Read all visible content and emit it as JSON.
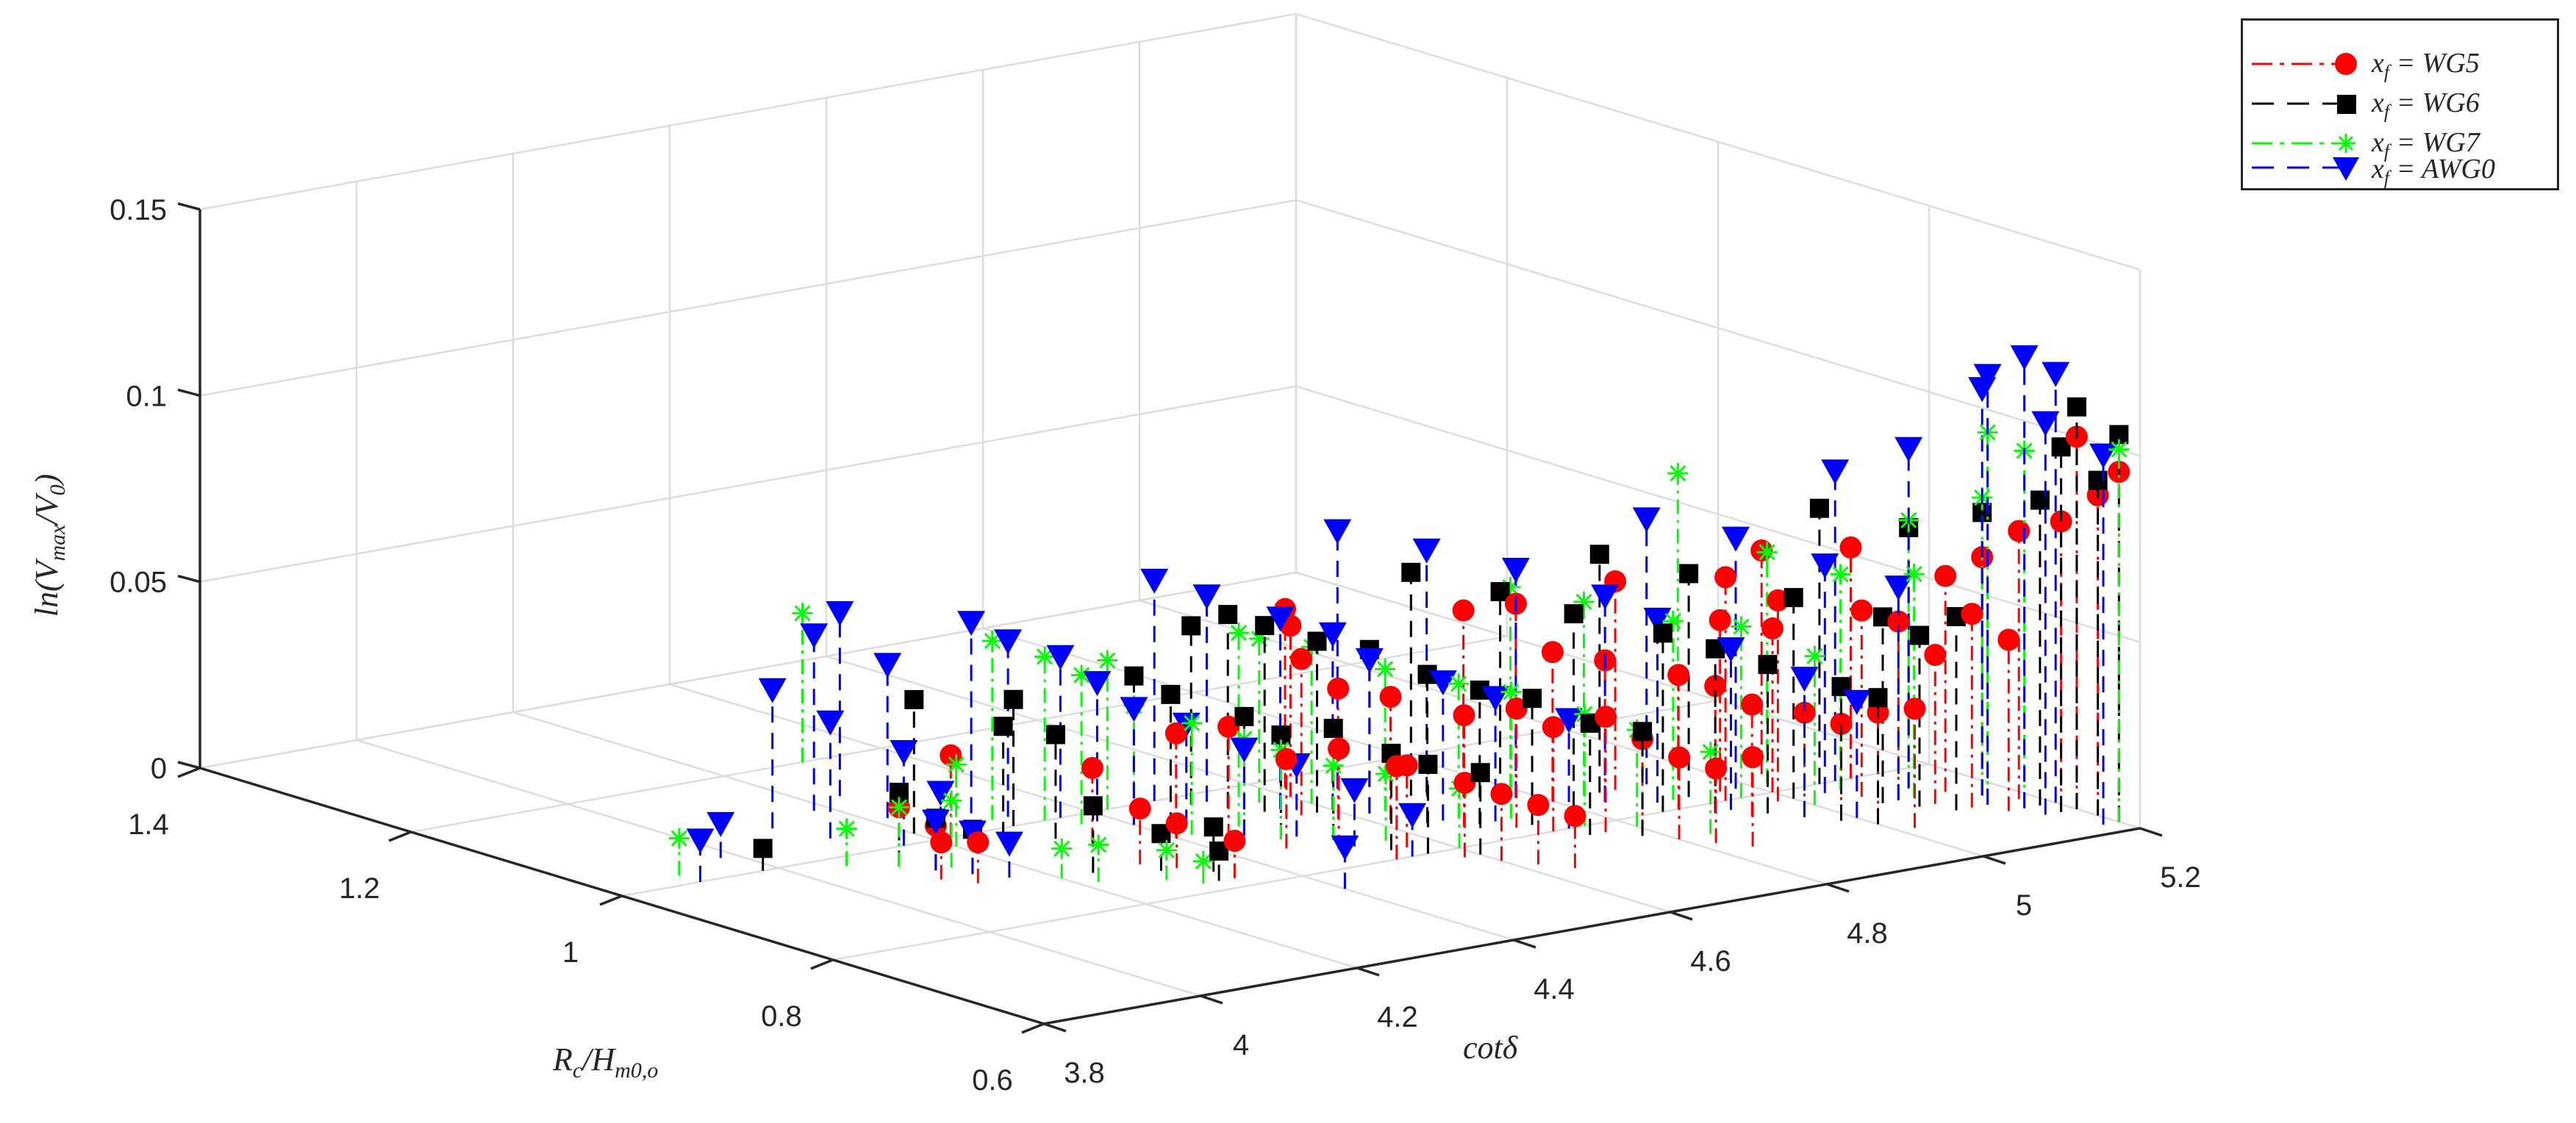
{
  "chart_data": {
    "type": "scatter3d-stem",
    "title": "",
    "xlabel": "R_c/H_{m0,o}",
    "ylabel": "cotδ",
    "zlabel": "ln(V_max/V_0)",
    "x_axis": {
      "label_display": "Rc/Hm0,o",
      "range": [
        0.6,
        1.4
      ],
      "ticks": [
        0.6,
        0.8,
        1,
        1.2,
        1.4
      ],
      "tick_labels": [
        "0.6",
        "0.8",
        "1",
        "1.2",
        "1.4"
      ]
    },
    "y_axis": {
      "label_display": "cotδ",
      "range": [
        3.8,
        5.2
      ],
      "ticks": [
        3.8,
        4,
        4.2,
        4.4,
        4.6,
        4.8,
        5,
        5.2
      ],
      "tick_labels": [
        "3.8",
        "4",
        "4.2",
        "4.4",
        "4.6",
        "4.8",
        "5",
        "5.2"
      ]
    },
    "z_axis": {
      "label_display": "ln(Vmax/V0)",
      "range": [
        0,
        0.15
      ],
      "ticks": [
        0,
        0.05,
        0.1,
        0.15
      ],
      "tick_labels": [
        "0",
        "0.05",
        "0.1",
        "0.15"
      ]
    },
    "grid": true,
    "legend_position": "top-right outside",
    "series": [
      {
        "name": "x_f = WG5",
        "legend_label": "WG5",
        "color": "#ff0000",
        "marker": "circle",
        "line_style": "dash-dot",
        "points": [
          [
            0.96,
            4.1,
            0.016
          ],
          [
            0.94,
            4.12,
            0.012
          ],
          [
            0.92,
            4.1,
            0.01
          ],
          [
            0.9,
            4.12,
            0.011
          ],
          [
            0.88,
            4.3,
            0.015
          ],
          [
            0.86,
            4.32,
            0.012
          ],
          [
            0.82,
            4.34,
            0.01
          ],
          [
            0.92,
            4.4,
            0.028
          ],
          [
            0.9,
            4.44,
            0.03
          ],
          [
            0.86,
            4.46,
            0.024
          ],
          [
            0.84,
            4.5,
            0.027
          ],
          [
            0.8,
            4.52,
            0.025
          ],
          [
            0.82,
            4.56,
            0.022
          ],
          [
            0.78,
            4.58,
            0.02
          ],
          [
            0.76,
            4.6,
            0.018
          ],
          [
            0.74,
            4.62,
            0.016
          ],
          [
            0.72,
            4.64,
            0.014
          ],
          [
            0.9,
            4.58,
            0.035
          ],
          [
            0.88,
            4.62,
            0.033
          ],
          [
            0.84,
            4.66,
            0.03
          ],
          [
            0.82,
            4.7,
            0.032
          ],
          [
            0.8,
            4.72,
            0.028
          ],
          [
            0.78,
            4.76,
            0.031
          ],
          [
            0.76,
            4.78,
            0.026
          ],
          [
            0.74,
            4.8,
            0.022
          ],
          [
            0.72,
            4.82,
            0.02
          ],
          [
            0.7,
            4.84,
            0.024
          ],
          [
            0.86,
            4.8,
            0.04
          ],
          [
            0.84,
            4.84,
            0.038
          ],
          [
            0.8,
            4.88,
            0.036
          ],
          [
            0.78,
            4.9,
            0.034
          ],
          [
            0.76,
            4.92,
            0.03
          ],
          [
            0.74,
            4.96,
            0.028
          ],
          [
            0.72,
            4.98,
            0.026
          ],
          [
            0.7,
            5.0,
            0.03
          ],
          [
            0.68,
            5.02,
            0.032
          ],
          [
            0.82,
            4.96,
            0.046
          ],
          [
            0.8,
            5.0,
            0.044
          ],
          [
            0.76,
            5.06,
            0.05
          ],
          [
            0.74,
            5.08,
            0.048
          ],
          [
            0.72,
            5.1,
            0.04
          ],
          [
            0.7,
            5.12,
            0.052
          ],
          [
            0.68,
            5.14,
            0.046
          ],
          [
            0.84,
            5.04,
            0.06
          ],
          [
            0.8,
            5.1,
            0.062
          ],
          [
            0.74,
            5.14,
            0.058
          ],
          [
            0.72,
            5.16,
            0.064
          ],
          [
            0.7,
            5.18,
            0.072
          ],
          [
            0.66,
            5.18,
            0.078
          ],
          [
            0.64,
            5.2,
            0.086
          ],
          [
            0.62,
            5.2,
            0.094
          ],
          [
            0.66,
            5.2,
            0.1
          ],
          [
            0.92,
            4.56,
            0.042
          ],
          [
            0.96,
            4.6,
            0.046
          ],
          [
            0.98,
            4.62,
            0.048
          ],
          [
            0.9,
            4.74,
            0.05
          ],
          [
            0.88,
            4.78,
            0.052
          ],
          [
            0.86,
            4.88,
            0.056
          ],
          [
            0.8,
            4.94,
            0.06
          ],
          [
            0.78,
            4.98,
            0.054
          ],
          [
            0.94,
            4.32,
            0.02
          ],
          [
            1.0,
            4.22,
            0.022
          ]
        ]
      },
      {
        "name": "x_f = WG6",
        "legend_label": "WG6",
        "color": "#000000",
        "marker": "square",
        "line_style": "dashed",
        "points": [
          [
            1.0,
            3.98,
            0.006
          ],
          [
            0.96,
            4.1,
            0.02
          ],
          [
            0.94,
            4.12,
            0.014
          ],
          [
            0.92,
            4.14,
            0.012
          ],
          [
            0.88,
            4.24,
            0.018
          ],
          [
            0.86,
            4.3,
            0.01
          ],
          [
            0.84,
            4.34,
            0.012
          ],
          [
            0.82,
            4.32,
            0.008
          ],
          [
            0.96,
            4.4,
            0.04
          ],
          [
            0.94,
            4.42,
            0.036
          ],
          [
            0.9,
            4.46,
            0.032
          ],
          [
            0.88,
            4.48,
            0.028
          ],
          [
            0.86,
            4.52,
            0.03
          ],
          [
            0.82,
            4.54,
            0.026
          ],
          [
            0.8,
            4.56,
            0.024
          ],
          [
            0.78,
            4.6,
            0.022
          ],
          [
            0.94,
            4.54,
            0.05
          ],
          [
            0.92,
            4.58,
            0.046
          ],
          [
            0.9,
            4.62,
            0.044
          ],
          [
            0.86,
            4.64,
            0.04
          ],
          [
            0.84,
            4.68,
            0.036
          ],
          [
            0.82,
            4.72,
            0.034
          ],
          [
            0.78,
            4.74,
            0.03
          ],
          [
            0.76,
            4.78,
            0.028
          ],
          [
            0.92,
            4.7,
            0.06
          ],
          [
            0.88,
            4.76,
            0.056
          ],
          [
            0.84,
            4.8,
            0.052
          ],
          [
            0.8,
            4.86,
            0.048
          ],
          [
            0.78,
            4.9,
            0.044
          ],
          [
            0.76,
            4.94,
            0.04
          ],
          [
            0.72,
            4.98,
            0.036
          ],
          [
            0.7,
            5.0,
            0.034
          ],
          [
            0.86,
            4.86,
            0.064
          ],
          [
            0.82,
            4.92,
            0.06
          ],
          [
            0.78,
            5.0,
            0.054
          ],
          [
            0.74,
            5.06,
            0.05
          ],
          [
            0.72,
            5.08,
            0.046
          ],
          [
            0.7,
            5.1,
            0.052
          ],
          [
            0.8,
            5.06,
            0.074
          ],
          [
            0.76,
            5.12,
            0.07
          ],
          [
            0.72,
            5.16,
            0.076
          ],
          [
            0.68,
            5.18,
            0.082
          ],
          [
            0.66,
            5.18,
            0.098
          ],
          [
            0.64,
            5.2,
            0.09
          ],
          [
            0.62,
            5.2,
            0.104
          ],
          [
            0.66,
            5.2,
            0.108
          ],
          [
            0.98,
            4.26,
            0.03
          ],
          [
            1.0,
            4.3,
            0.034
          ],
          [
            0.96,
            4.3,
            0.028
          ],
          [
            1.02,
            4.2,
            0.036
          ],
          [
            0.98,
            4.5,
            0.048
          ],
          [
            0.96,
            4.52,
            0.052
          ]
        ]
      },
      {
        "name": "x_f = WG7",
        "legend_label": "WG7",
        "color": "#00ff00",
        "marker": "asterisk",
        "line_style": "dash-dot",
        "points": [
          [
            1.02,
            3.9,
            0.01
          ],
          [
            1.2,
            4.3,
            0.04
          ],
          [
            0.98,
            4.06,
            0.01
          ],
          [
            0.96,
            4.1,
            0.016
          ],
          [
            0.94,
            4.14,
            0.018
          ],
          [
            0.88,
            4.2,
            0.008
          ],
          [
            0.86,
            4.22,
            0.01
          ],
          [
            0.84,
            4.28,
            0.008
          ],
          [
            0.82,
            4.3,
            0.006
          ],
          [
            1.02,
            4.3,
            0.048
          ],
          [
            1.0,
            4.34,
            0.044
          ],
          [
            0.98,
            4.36,
            0.04
          ],
          [
            0.96,
            4.4,
            0.032
          ],
          [
            0.92,
            4.42,
            0.03
          ],
          [
            0.9,
            4.46,
            0.026
          ],
          [
            0.88,
            4.48,
            0.024
          ],
          [
            0.86,
            4.52,
            0.02
          ],
          [
            0.84,
            4.56,
            0.018
          ],
          [
            0.8,
            4.6,
            0.016
          ],
          [
            0.96,
            4.56,
            0.044
          ],
          [
            0.94,
            4.6,
            0.042
          ],
          [
            0.9,
            4.64,
            0.038
          ],
          [
            0.86,
            4.68,
            0.036
          ],
          [
            0.84,
            4.72,
            0.034
          ],
          [
            0.8,
            4.76,
            0.03
          ],
          [
            0.78,
            4.8,
            0.026
          ],
          [
            0.74,
            4.84,
            0.022
          ],
          [
            0.9,
            4.8,
            0.054
          ],
          [
            0.86,
            4.84,
            0.052
          ],
          [
            0.82,
            4.9,
            0.048
          ],
          [
            0.8,
            4.96,
            0.046
          ],
          [
            0.76,
            5.0,
            0.04
          ],
          [
            0.86,
            4.96,
            0.082
          ],
          [
            0.82,
            5.02,
            0.062
          ],
          [
            0.78,
            5.06,
            0.058
          ],
          [
            0.74,
            5.1,
            0.06
          ],
          [
            0.76,
            5.12,
            0.072
          ],
          [
            0.72,
            5.16,
            0.08
          ],
          [
            0.7,
            5.14,
            0.1
          ],
          [
            0.68,
            5.16,
            0.096
          ],
          [
            0.62,
            5.2,
            0.1
          ],
          [
            0.92,
            4.48,
            0.052
          ],
          [
            1.0,
            4.42,
            0.04
          ],
          [
            0.98,
            4.2,
            0.022
          ]
        ]
      },
      {
        "name": "x_f = AWG0",
        "legend_label": "AWG0",
        "color": "#0000ff",
        "marker": "triangle-down",
        "line_style": "dashed",
        "points": [
          [
            1.0,
            3.9,
            0.01
          ],
          [
            1.04,
            3.98,
            0.008
          ],
          [
            1.08,
            4.1,
            0.036
          ],
          [
            1.04,
            4.12,
            0.03
          ],
          [
            1.0,
            4.16,
            0.024
          ],
          [
            0.98,
            4.18,
            0.014
          ],
          [
            0.94,
            4.12,
            0.012
          ],
          [
            0.92,
            4.14,
            0.01
          ],
          [
            0.9,
            4.16,
            0.008
          ],
          [
            1.04,
            4.3,
            0.05
          ],
          [
            1.02,
            4.32,
            0.046
          ],
          [
            1.0,
            4.36,
            0.042
          ],
          [
            0.98,
            4.38,
            0.036
          ],
          [
            0.96,
            4.4,
            0.03
          ],
          [
            0.94,
            4.44,
            0.026
          ],
          [
            0.9,
            4.46,
            0.022
          ],
          [
            0.88,
            4.5,
            0.018
          ],
          [
            0.84,
            4.52,
            0.014
          ],
          [
            0.8,
            4.54,
            0.01
          ],
          [
            0.76,
            4.4,
            0.01
          ],
          [
            1.0,
            4.48,
            0.058
          ],
          [
            0.98,
            4.52,
            0.054
          ],
          [
            0.94,
            4.56,
            0.05
          ],
          [
            0.92,
            4.6,
            0.046
          ],
          [
            0.9,
            4.62,
            0.04
          ],
          [
            0.86,
            4.66,
            0.036
          ],
          [
            0.84,
            4.7,
            0.032
          ],
          [
            0.8,
            4.74,
            0.028
          ],
          [
            0.96,
            4.66,
            0.068
          ],
          [
            0.92,
            4.72,
            0.064
          ],
          [
            0.88,
            4.78,
            0.06
          ],
          [
            0.84,
            4.84,
            0.054
          ],
          [
            0.82,
            4.88,
            0.048
          ],
          [
            0.78,
            4.92,
            0.042
          ],
          [
            0.74,
            4.96,
            0.036
          ],
          [
            0.72,
            5.0,
            0.03
          ],
          [
            0.86,
            4.92,
            0.07
          ],
          [
            0.82,
            4.98,
            0.066
          ],
          [
            0.78,
            5.04,
            0.06
          ],
          [
            0.74,
            5.08,
            0.056
          ],
          [
            0.8,
            5.08,
            0.082
          ],
          [
            0.76,
            5.12,
            0.09
          ],
          [
            0.72,
            5.16,
            0.108
          ],
          [
            0.7,
            5.14,
            0.114
          ],
          [
            0.68,
            5.16,
            0.12
          ],
          [
            0.66,
            5.16,
            0.104
          ],
          [
            0.68,
            5.2,
            0.114
          ],
          [
            0.62,
            5.18,
            0.098
          ],
          [
            1.06,
            4.22,
            0.04
          ],
          [
            1.1,
            4.18,
            0.046
          ],
          [
            1.12,
            4.24,
            0.048
          ]
        ]
      }
    ]
  },
  "legend": {
    "entries": [
      {
        "prefix": "x",
        "sub": "f",
        "eq": " = ",
        "value": "WG5"
      },
      {
        "prefix": "x",
        "sub": "f",
        "eq": " = ",
        "value": "WG6"
      },
      {
        "prefix": "x",
        "sub": "f",
        "eq": " = ",
        "value": "WG7"
      },
      {
        "prefix": "x",
        "sub": "f",
        "eq": " = ",
        "value": "AWG0"
      }
    ]
  },
  "labels": {
    "z_title": "ln(Vmax/V0)",
    "x_title": "Rc/Hm0,o",
    "y_title": "cotδ"
  }
}
